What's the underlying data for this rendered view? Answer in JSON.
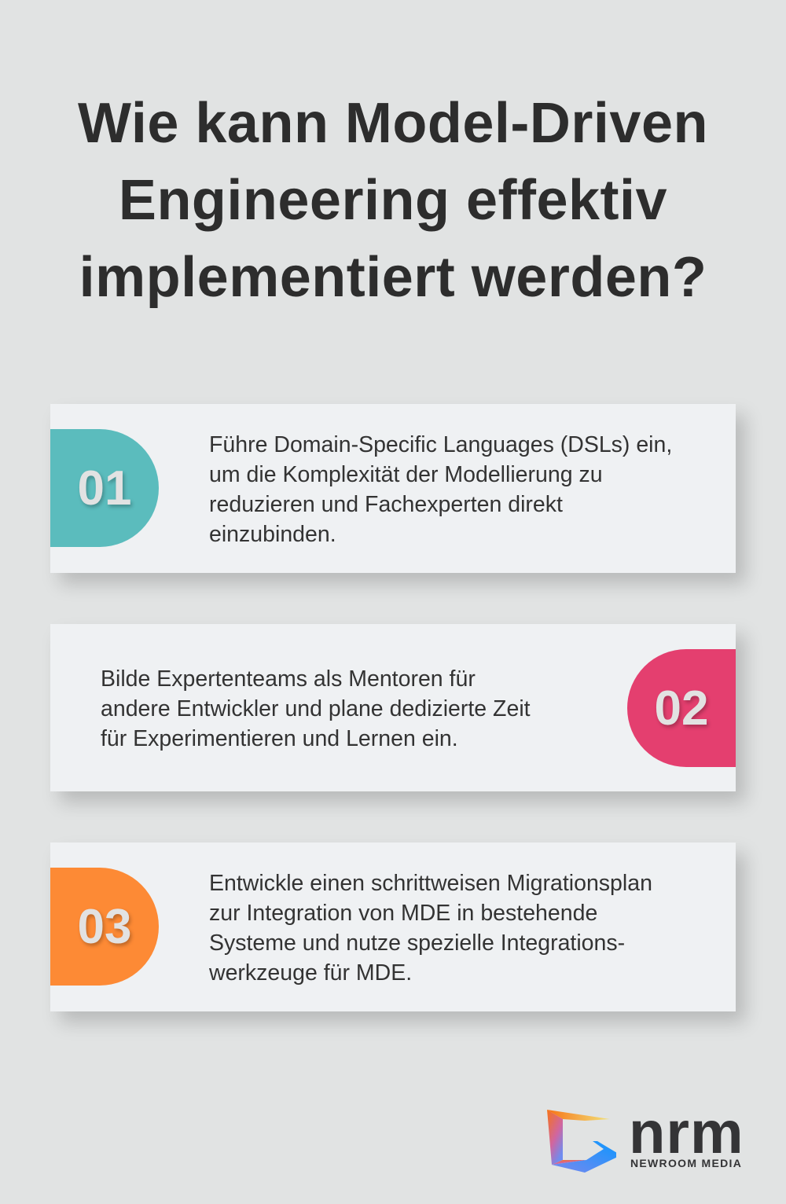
{
  "title_lines": [
    "Wie kann Model-Driven",
    "Engineering effektiv",
    "implementiert werden?"
  ],
  "cards": [
    {
      "number": "01",
      "color": "#5bbcbd",
      "lines": [
        "Führe Domain-Specific Languages (DSLs) ein,",
        "um die Komplexität der Modellierung zu",
        "reduzieren und Fachexperten direkt",
        "einzubinden."
      ]
    },
    {
      "number": "02",
      "color": "#e43f6f",
      "lines": [
        "Bilde Expertenteams als Mentoren für",
        "andere Entwickler und plane dedizierte Zeit",
        "für Experimentieren und Lernen ein."
      ]
    },
    {
      "number": "03",
      "color": "#fd8a35",
      "lines": [
        "Entwickle einen schrittweisen Migrationsplan",
        "zur Integration von MDE in bestehende",
        "Systeme und nutze spezielle Integrations-",
        "werkzeuge für MDE."
      ]
    }
  ],
  "logo": {
    "wordmark": "nrm",
    "name": "NEWROOM MEDIA"
  }
}
